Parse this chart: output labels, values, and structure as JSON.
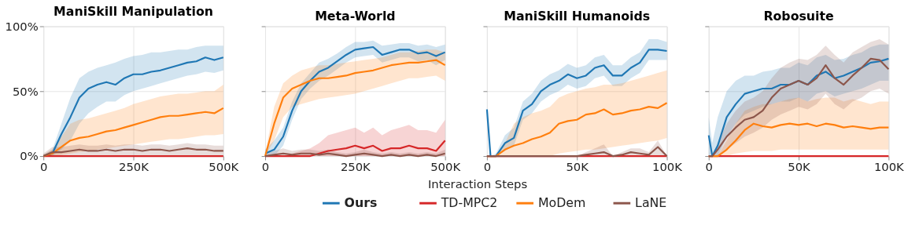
{
  "chart_data": [
    {
      "type": "line",
      "title": "ManiSkill Manipulation",
      "legend": "bottom",
      "grid": true,
      "x": [
        0,
        25000,
        50000,
        75000,
        100000,
        125000,
        150000,
        175000,
        200000,
        225000,
        250000,
        275000,
        300000,
        325000,
        350000,
        375000,
        400000,
        425000,
        450000,
        475000,
        500000
      ],
      "xlim": [
        0,
        500000
      ],
      "xticks": [
        0,
        {
          "value": 250000,
          "label": "250K"
        },
        {
          "value": 500000,
          "label": "500K"
        }
      ],
      "ylim": [
        0,
        100
      ],
      "yticks": [
        {
          "value": 0,
          "label": "0%"
        },
        {
          "value": 50,
          "label": "50%"
        },
        {
          "value": 100,
          "label": "100%"
        }
      ],
      "series": [
        {
          "name": "Ours",
          "color": "#1f77b4",
          "values": [
            0,
            2,
            17,
            30,
            45,
            52,
            55,
            57,
            55,
            60,
            63,
            63,
            65,
            66,
            68,
            70,
            72,
            73,
            76,
            74,
            76
          ],
          "lower": [
            0,
            0,
            5,
            12,
            25,
            33,
            38,
            42,
            42,
            47,
            50,
            52,
            54,
            56,
            58,
            60,
            62,
            63,
            65,
            64,
            66
          ],
          "upper": [
            1,
            5,
            25,
            45,
            60,
            65,
            68,
            70,
            72,
            75,
            77,
            78,
            80,
            80,
            81,
            82,
            82,
            84,
            85,
            85,
            85
          ]
        },
        {
          "name": "TD-MPC2",
          "color": "#d62728",
          "values": [
            0,
            0,
            0,
            0,
            0,
            0,
            0,
            0,
            0,
            0,
            0,
            0,
            0,
            0,
            0,
            0,
            0,
            0,
            0,
            0,
            0
          ]
        },
        {
          "name": "MoDem",
          "color": "#ff7f0e",
          "values": [
            0,
            2,
            7,
            12,
            14,
            15,
            17,
            19,
            20,
            22,
            24,
            26,
            28,
            30,
            31,
            31,
            32,
            33,
            34,
            33,
            37
          ],
          "lower": [
            0,
            0,
            1,
            2,
            3,
            4,
            5,
            6,
            7,
            8,
            9,
            10,
            11,
            12,
            13,
            13,
            14,
            15,
            16,
            16,
            17
          ],
          "upper": [
            1,
            5,
            15,
            25,
            28,
            29,
            31,
            33,
            35,
            37,
            40,
            42,
            44,
            46,
            47,
            48,
            48,
            49,
            50,
            50,
            55
          ]
        },
        {
          "name": "LaNE",
          "color": "#8c564b",
          "values": [
            0,
            3,
            3,
            4,
            5,
            4,
            4,
            5,
            4,
            5,
            5,
            4,
            5,
            5,
            4,
            5,
            6,
            5,
            5,
            4,
            4
          ],
          "lower": [
            0,
            0,
            0,
            0,
            0,
            0,
            0,
            0,
            0,
            0,
            0,
            0,
            0,
            0,
            0,
            0,
            0,
            0,
            0,
            0,
            0
          ],
          "upper": [
            2,
            7,
            7,
            8,
            9,
            8,
            8,
            9,
            8,
            9,
            9,
            8,
            9,
            9,
            8,
            9,
            10,
            9,
            9,
            8,
            8
          ]
        }
      ]
    },
    {
      "type": "line",
      "title": "Meta-World",
      "xlabel": "Interaction Steps",
      "grid": true,
      "tick_labels": "x",
      "x": [
        0,
        25000,
        50000,
        75000,
        100000,
        125000,
        150000,
        175000,
        200000,
        225000,
        250000,
        275000,
        300000,
        325000,
        350000,
        375000,
        400000,
        425000,
        450000,
        475000,
        500000
      ],
      "xlim": [
        0,
        500000
      ],
      "xticks": [
        0,
        {
          "value": 250000,
          "label": "250K"
        },
        {
          "value": 500000,
          "label": "500K"
        }
      ],
      "ylim": [
        0,
        100
      ],
      "yticks": [
        {
          "value": 0,
          "label": null
        },
        {
          "value": 50,
          "label": null
        },
        {
          "value": 100,
          "label": null
        }
      ],
      "series": [
        {
          "color": "#1f77b4",
          "values": [
            2,
            5,
            15,
            35,
            50,
            58,
            65,
            68,
            73,
            78,
            82,
            83,
            84,
            78,
            80,
            82,
            82,
            79,
            80,
            77,
            80
          ],
          "lower": [
            0,
            0,
            8,
            28,
            44,
            52,
            58,
            62,
            67,
            72,
            76,
            77,
            78,
            72,
            74,
            76,
            76,
            73,
            74,
            70,
            74
          ],
          "upper": [
            5,
            12,
            22,
            42,
            56,
            64,
            72,
            75,
            79,
            84,
            88,
            88,
            89,
            85,
            86,
            87,
            87,
            85,
            86,
            84,
            86
          ]
        },
        {
          "color": "#d62728",
          "values": [
            0,
            0,
            0,
            0,
            0,
            0,
            2,
            4,
            5,
            6,
            8,
            6,
            8,
            4,
            6,
            6,
            8,
            6,
            6,
            4,
            12
          ],
          "lower": [
            0,
            0,
            0,
            0,
            0,
            0,
            0,
            0,
            0,
            0,
            0,
            0,
            0,
            0,
            0,
            0,
            0,
            0,
            0,
            0,
            0
          ],
          "upper": [
            0,
            0,
            0,
            2,
            4,
            6,
            10,
            16,
            18,
            20,
            22,
            18,
            22,
            16,
            20,
            22,
            24,
            20,
            20,
            18,
            28
          ]
        },
        {
          "color": "#ff7f0e",
          "values": [
            0,
            25,
            45,
            52,
            55,
            58,
            60,
            60,
            61,
            62,
            64,
            65,
            66,
            68,
            70,
            71,
            72,
            72,
            73,
            74,
            70
          ],
          "lower": [
            0,
            12,
            30,
            38,
            40,
            42,
            44,
            45,
            46,
            47,
            48,
            50,
            52,
            54,
            56,
            58,
            60,
            60,
            61,
            62,
            58
          ],
          "upper": [
            2,
            38,
            56,
            62,
            66,
            68,
            70,
            70,
            71,
            72,
            73,
            74,
            75,
            76,
            78,
            80,
            80,
            81,
            82,
            82,
            80
          ]
        },
        {
          "color": "#8c564b",
          "values": [
            0,
            1,
            2,
            1,
            2,
            2,
            1,
            2,
            1,
            0,
            1,
            2,
            1,
            0,
            1,
            0,
            1,
            0,
            1,
            0,
            2
          ],
          "lower": [
            0,
            0,
            0,
            0,
            0,
            0,
            0,
            0,
            0,
            0,
            0,
            0,
            0,
            0,
            0,
            0,
            0,
            0,
            0,
            0,
            0
          ],
          "upper": [
            2,
            4,
            6,
            4,
            5,
            5,
            4,
            5,
            3,
            2,
            3,
            5,
            3,
            2,
            3,
            2,
            3,
            2,
            3,
            2,
            5
          ]
        }
      ]
    },
    {
      "type": "line",
      "title": "ManiSkill Humanoids",
      "grid": true,
      "tick_labels": "x",
      "x": [
        0,
        2000,
        5000,
        10000,
        15000,
        20000,
        25000,
        30000,
        35000,
        40000,
        45000,
        50000,
        55000,
        60000,
        65000,
        70000,
        75000,
        80000,
        85000,
        90000,
        95000,
        100000
      ],
      "xlim": [
        0,
        100000
      ],
      "xticks": [
        0,
        {
          "value": 50000,
          "label": "50K"
        },
        {
          "value": 100000,
          "label": "100K"
        }
      ],
      "ylim": [
        0,
        100
      ],
      "yticks": [
        {
          "value": 0,
          "label": null
        },
        {
          "value": 50,
          "label": null
        },
        {
          "value": 100,
          "label": null
        }
      ],
      "series": [
        {
          "color": "#1f77b4",
          "values": [
            36,
            0,
            0,
            10,
            14,
            35,
            40,
            50,
            55,
            58,
            63,
            60,
            62,
            68,
            70,
            62,
            62,
            68,
            72,
            82,
            82,
            81
          ],
          "lower": [
            36,
            0,
            0,
            4,
            8,
            28,
            33,
            42,
            47,
            50,
            55,
            52,
            54,
            60,
            62,
            54,
            54,
            60,
            64,
            74,
            74,
            74
          ],
          "upper": [
            36,
            0,
            2,
            16,
            22,
            42,
            48,
            58,
            63,
            66,
            71,
            68,
            70,
            76,
            78,
            70,
            70,
            76,
            80,
            90,
            90,
            88
          ]
        },
        {
          "color": "#d62728",
          "values": [
            0,
            0,
            0,
            0,
            0,
            0,
            0,
            0,
            0,
            0,
            0,
            0,
            0,
            0,
            0,
            0,
            0,
            0,
            0,
            0,
            0,
            0
          ]
        },
        {
          "color": "#ff7f0e",
          "values": [
            0,
            0,
            0,
            5,
            8,
            10,
            13,
            15,
            18,
            25,
            27,
            28,
            32,
            33,
            36,
            32,
            33,
            35,
            36,
            38,
            37,
            41
          ],
          "lower": [
            0,
            0,
            0,
            0,
            0,
            0,
            0,
            0,
            0,
            2,
            3,
            4,
            5,
            5,
            6,
            7,
            8,
            9,
            10,
            11,
            12,
            14
          ],
          "upper": [
            0,
            0,
            0,
            10,
            25,
            30,
            33,
            35,
            38,
            45,
            48,
            50,
            52,
            53,
            55,
            55,
            56,
            58,
            60,
            62,
            64,
            66
          ]
        },
        {
          "color": "#8c564b",
          "values": [
            0,
            0,
            0,
            0,
            0,
            0,
            0,
            0,
            0,
            0,
            0,
            0,
            1,
            2,
            3,
            0,
            1,
            3,
            2,
            1,
            7,
            0
          ],
          "lower": [
            0,
            0,
            0,
            0,
            0,
            0,
            0,
            0,
            0,
            0,
            0,
            0,
            0,
            0,
            0,
            0,
            0,
            0,
            0,
            0,
            0,
            0
          ],
          "upper": [
            0,
            0,
            0,
            0,
            0,
            0,
            0,
            0,
            0,
            0,
            0,
            0,
            3,
            6,
            9,
            0,
            3,
            6,
            6,
            3,
            12,
            0
          ]
        }
      ]
    },
    {
      "type": "line",
      "title": "Robosuite",
      "grid": true,
      "tick_labels": "x",
      "x": [
        0,
        2000,
        5000,
        10000,
        15000,
        20000,
        25000,
        30000,
        35000,
        40000,
        45000,
        50000,
        55000,
        60000,
        65000,
        70000,
        75000,
        80000,
        85000,
        90000,
        95000,
        100000
      ],
      "xlim": [
        0,
        100000
      ],
      "xticks": [
        0,
        {
          "value": 50000,
          "label": "50K"
        },
        {
          "value": 100000,
          "label": "100K"
        }
      ],
      "ylim": [
        0,
        100
      ],
      "yticks": [
        {
          "value": 0,
          "label": null
        },
        {
          "value": 50,
          "label": null
        },
        {
          "value": 100,
          "label": null
        }
      ],
      "series": [
        {
          "color": "#1f77b4",
          "values": [
            16,
            0,
            8,
            30,
            40,
            48,
            50,
            52,
            52,
            55,
            55,
            58,
            55,
            62,
            65,
            60,
            62,
            65,
            68,
            72,
            73,
            75
          ],
          "lower": [
            0,
            0,
            0,
            15,
            25,
            32,
            35,
            38,
            40,
            42,
            42,
            45,
            42,
            48,
            50,
            46,
            48,
            50,
            52,
            55,
            58,
            58
          ],
          "upper": [
            30,
            10,
            30,
            50,
            58,
            62,
            62,
            65,
            66,
            68,
            68,
            72,
            70,
            76,
            78,
            74,
            75,
            78,
            80,
            84,
            86,
            86
          ]
        },
        {
          "color": "#d62728",
          "values": [
            0,
            0,
            0,
            0,
            0,
            0,
            0,
            0,
            0,
            0,
            0,
            0,
            0,
            0,
            0,
            0,
            0,
            0,
            0,
            0,
            0,
            0
          ]
        },
        {
          "color": "#ff7f0e",
          "values": [
            0,
            0,
            0,
            5,
            12,
            20,
            25,
            23,
            22,
            24,
            25,
            24,
            25,
            23,
            25,
            24,
            22,
            23,
            22,
            21,
            22,
            22
          ],
          "lower": [
            0,
            0,
            0,
            0,
            2,
            3,
            4,
            4,
            4,
            5,
            5,
            5,
            5,
            5,
            5,
            5,
            5,
            5,
            5,
            5,
            5,
            5
          ],
          "upper": [
            0,
            0,
            0,
            12,
            25,
            35,
            38,
            40,
            40,
            42,
            44,
            45,
            42,
            44,
            45,
            45,
            42,
            44,
            42,
            40,
            42,
            42
          ]
        },
        {
          "color": "#8c564b",
          "values": [
            0,
            0,
            5,
            15,
            22,
            28,
            30,
            35,
            45,
            52,
            55,
            58,
            55,
            60,
            70,
            60,
            55,
            62,
            68,
            75,
            74,
            67
          ],
          "lower": [
            0,
            0,
            0,
            5,
            10,
            15,
            18,
            22,
            28,
            32,
            35,
            38,
            36,
            40,
            48,
            40,
            36,
            42,
            45,
            50,
            52,
            48
          ],
          "upper": [
            0,
            0,
            10,
            25,
            35,
            42,
            45,
            50,
            60,
            68,
            72,
            75,
            74,
            78,
            85,
            78,
            72,
            80,
            84,
            88,
            90,
            86
          ]
        }
      ]
    }
  ]
}
